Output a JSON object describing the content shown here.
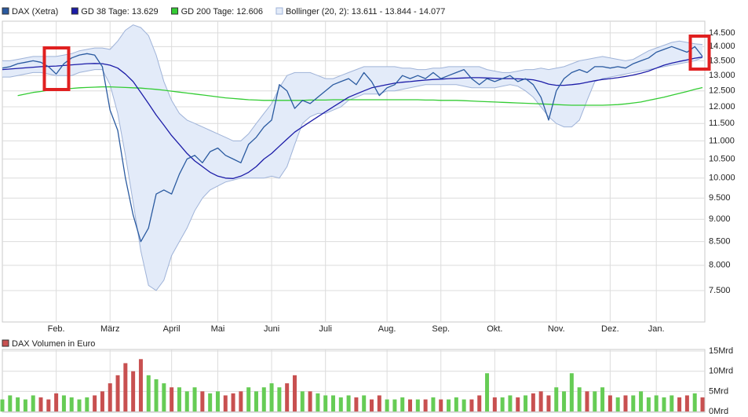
{
  "chart_data": [
    {
      "type": "line",
      "log_scale": true,
      "grid": true,
      "legend": "top-left",
      "categories": [
        null,
        null,
        null,
        null,
        null,
        null,
        null,
        "Feb.",
        null,
        null,
        null,
        null,
        null,
        null,
        "März",
        null,
        null,
        null,
        null,
        null,
        null,
        null,
        "April",
        null,
        null,
        null,
        null,
        null,
        "Mai",
        null,
        null,
        null,
        null,
        null,
        null,
        "Juni",
        null,
        null,
        null,
        null,
        null,
        null,
        "Juli",
        null,
        null,
        null,
        null,
        null,
        null,
        null,
        "Aug.",
        null,
        null,
        null,
        null,
        null,
        null,
        "Sep.",
        null,
        null,
        null,
        null,
        null,
        null,
        "Okt.",
        null,
        null,
        null,
        null,
        null,
        null,
        null,
        "Nov.",
        null,
        null,
        null,
        null,
        null,
        null,
        "Dez.",
        null,
        null,
        null,
        null,
        null,
        "Jan.",
        null,
        null,
        null,
        null,
        null,
        null
      ],
      "series": [
        {
          "name": "Bollinger (20, 2): 13.611 - 13.844 - 14.077",
          "kind": "band",
          "color": "#9fb3d8",
          "fill": "#e3ebf9",
          "values_upper": [
            13500,
            13500,
            13550,
            13600,
            13650,
            13650,
            13650,
            13650,
            13700,
            13750,
            13850,
            13900,
            13950,
            13950,
            13900,
            14200,
            14600,
            14800,
            14700,
            14400,
            13700,
            12800,
            12200,
            11800,
            11600,
            11500,
            11400,
            11300,
            11200,
            11100,
            11000,
            11000,
            11200,
            11500,
            11800,
            12100,
            12600,
            13000,
            13100,
            13100,
            13100,
            13000,
            12900,
            12900,
            13000,
            13100,
            13200,
            13300,
            13300,
            13300,
            13300,
            13300,
            13250,
            13250,
            13200,
            13200,
            13250,
            13250,
            13300,
            13300,
            13300,
            13300,
            13300,
            13200,
            13150,
            13100,
            13100,
            13150,
            13200,
            13200,
            13250,
            13200,
            13250,
            13300,
            13400,
            13500,
            13550,
            13600,
            13650,
            13600,
            13550,
            13500,
            13550,
            13700,
            13850,
            13950,
            14050,
            14150,
            14200,
            14150,
            14100,
            14077
          ],
          "values_lower": [
            12950,
            12950,
            13000,
            13050,
            13100,
            13100,
            13050,
            13000,
            13000,
            13000,
            13100,
            13150,
            13200,
            13200,
            12700,
            11800,
            10600,
            9400,
            8300,
            7600,
            7500,
            7700,
            8200,
            8500,
            8800,
            9200,
            9500,
            9700,
            9800,
            9900,
            9950,
            10000,
            10000,
            10000,
            10000,
            10050,
            10000,
            10300,
            10900,
            11500,
            11700,
            11800,
            11800,
            11900,
            12000,
            12200,
            12300,
            12400,
            12400,
            12400,
            12500,
            12500,
            12550,
            12600,
            12650,
            12700,
            12700,
            12700,
            12700,
            12700,
            12650,
            12600,
            12600,
            12600,
            12600,
            12650,
            12700,
            12650,
            12500,
            12300,
            12000,
            11700,
            11500,
            11400,
            11400,
            11600,
            12200,
            12800,
            12900,
            12950,
            13000,
            13050,
            13100,
            13150,
            13200,
            13250,
            13300,
            13350,
            13400,
            13450,
            13500,
            13611
          ]
        },
        {
          "name": "GD 200 Tage: 12.606",
          "color": "#33cc33",
          "values": [
            null,
            null,
            12350,
            12400,
            12450,
            12480,
            12520,
            12540,
            12560,
            12580,
            12600,
            12610,
            12620,
            12630,
            12630,
            12620,
            12610,
            12600,
            12590,
            12570,
            12550,
            12520,
            12490,
            12460,
            12430,
            12400,
            12370,
            12340,
            12310,
            12280,
            12260,
            12240,
            12220,
            12210,
            12200,
            12200,
            12200,
            12200,
            12200,
            12200,
            12210,
            12210,
            12210,
            12220,
            12220,
            12220,
            12220,
            12220,
            12220,
            12220,
            12220,
            12220,
            12220,
            12220,
            12220,
            12210,
            12210,
            12200,
            12200,
            12200,
            12190,
            12180,
            12170,
            12160,
            12150,
            12140,
            12130,
            12120,
            12110,
            12100,
            12090,
            12080,
            12070,
            12060,
            12050,
            12050,
            12050,
            12050,
            12050,
            12060,
            12070,
            12090,
            12120,
            12150,
            12200,
            12250,
            12300,
            12360,
            12420,
            12480,
            12550,
            12606
          ]
        },
        {
          "name": "GD 38 Tage: 13.629",
          "color": "#1c1ca8",
          "values": [
            13200,
            13220,
            13240,
            13260,
            13280,
            13300,
            13310,
            13320,
            13340,
            13360,
            13380,
            13400,
            13410,
            13400,
            13350,
            13250,
            13050,
            12800,
            12450,
            12100,
            11750,
            11450,
            11150,
            10900,
            10650,
            10450,
            10300,
            10150,
            10050,
            10000,
            9990,
            10050,
            10150,
            10300,
            10500,
            10650,
            10850,
            11050,
            11250,
            11400,
            11550,
            11700,
            11850,
            12000,
            12150,
            12300,
            12400,
            12500,
            12600,
            12650,
            12700,
            12750,
            12780,
            12800,
            12830,
            12850,
            12870,
            12880,
            12900,
            12910,
            12920,
            12930,
            12930,
            12920,
            12910,
            12900,
            12900,
            12890,
            12880,
            12860,
            12800,
            12720,
            12680,
            12680,
            12700,
            12730,
            12780,
            12830,
            12870,
            12900,
            12930,
            12970,
            13020,
            13080,
            13150,
            13250,
            13350,
            13420,
            13480,
            13530,
            13590,
            13629
          ]
        },
        {
          "name": "DAX (Xetra)",
          "color": "#2a5aa0",
          "values": [
            13250,
            13300,
            13400,
            13450,
            13500,
            13450,
            13300,
            13050,
            13400,
            13600,
            13700,
            13750,
            13700,
            13300,
            11900,
            11300,
            10000,
            9100,
            8500,
            8800,
            9600,
            9700,
            9600,
            10100,
            10500,
            10600,
            10400,
            10700,
            10800,
            10600,
            10500,
            10400,
            10900,
            11100,
            11400,
            11600,
            12700,
            12500,
            11950,
            12200,
            12100,
            12300,
            12500,
            12700,
            12800,
            12900,
            12700,
            13100,
            12800,
            12350,
            12600,
            12700,
            13000,
            12900,
            13000,
            12900,
            13100,
            12900,
            13000,
            13100,
            13200,
            12900,
            12700,
            12900,
            12800,
            12900,
            13000,
            12800,
            12900,
            12700,
            12300,
            11600,
            12500,
            12900,
            13100,
            13200,
            13100,
            13300,
            13300,
            13250,
            13300,
            13250,
            13400,
            13500,
            13600,
            13800,
            13900,
            14000,
            13900,
            13800,
            14000,
            13650
          ]
        }
      ],
      "legend_order": [
        3,
        2,
        1,
        0
      ],
      "ylim": [
        6920,
        14940
      ],
      "yticks": [
        {
          "value": 14500,
          "label": "14.500"
        },
        {
          "value": 14000,
          "label": "14.000"
        },
        {
          "value": 13500,
          "label": "13.500"
        },
        {
          "value": 13000,
          "label": "13.000"
        },
        {
          "value": 12500,
          "label": "12.500"
        },
        {
          "value": 12000,
          "label": "12.000"
        },
        {
          "value": 11500,
          "label": "11.500"
        },
        {
          "value": 11000,
          "label": "11.000"
        },
        {
          "value": 10500,
          "label": "10.500"
        },
        {
          "value": 10000,
          "label": "10.000"
        },
        {
          "value": 9500,
          "label": "9.500"
        },
        {
          "value": 9000,
          "label": "9.000"
        },
        {
          "value": 8500,
          "label": "8.500"
        },
        {
          "value": 8000,
          "label": "8.000"
        },
        {
          "value": 7500,
          "label": "7.500"
        }
      ]
    },
    {
      "type": "bar",
      "name": "DAX Volumen in Euro",
      "color": "#c85050",
      "up_color": "#66cc55",
      "down_color": "#c85050",
      "grid": true,
      "values": [
        3,
        4,
        3.5,
        3,
        4,
        3.5,
        3,
        4.5,
        4,
        3.5,
        3,
        3.5,
        4,
        5,
        7,
        9,
        12,
        10,
        13,
        9,
        8,
        7,
        6,
        6,
        5,
        6,
        5,
        4.5,
        5,
        4,
        4.5,
        5,
        6,
        5,
        6,
        7,
        6,
        7,
        9,
        5,
        5,
        4.5,
        4,
        4,
        3.5,
        4,
        3.5,
        4,
        3,
        4,
        3,
        3,
        3.5,
        3,
        3,
        3,
        3.5,
        3,
        3,
        3.5,
        3,
        3,
        4,
        9.5,
        3.5,
        3.5,
        4,
        3.5,
        4,
        4.5,
        5,
        4,
        6,
        5,
        9.5,
        6,
        5,
        5,
        6,
        4,
        3.5,
        4,
        4,
        5,
        3.5,
        4,
        3.5,
        4,
        3.5,
        4,
        4.5,
        3.5
      ],
      "ylim": [
        0,
        15.4
      ],
      "yticks": [
        {
          "value": 15,
          "label": "15Mrd"
        },
        {
          "value": 10,
          "label": "10Mrd"
        },
        {
          "value": 5,
          "label": "5Mrd"
        },
        {
          "value": 0,
          "label": "0Mrd"
        }
      ]
    }
  ]
}
